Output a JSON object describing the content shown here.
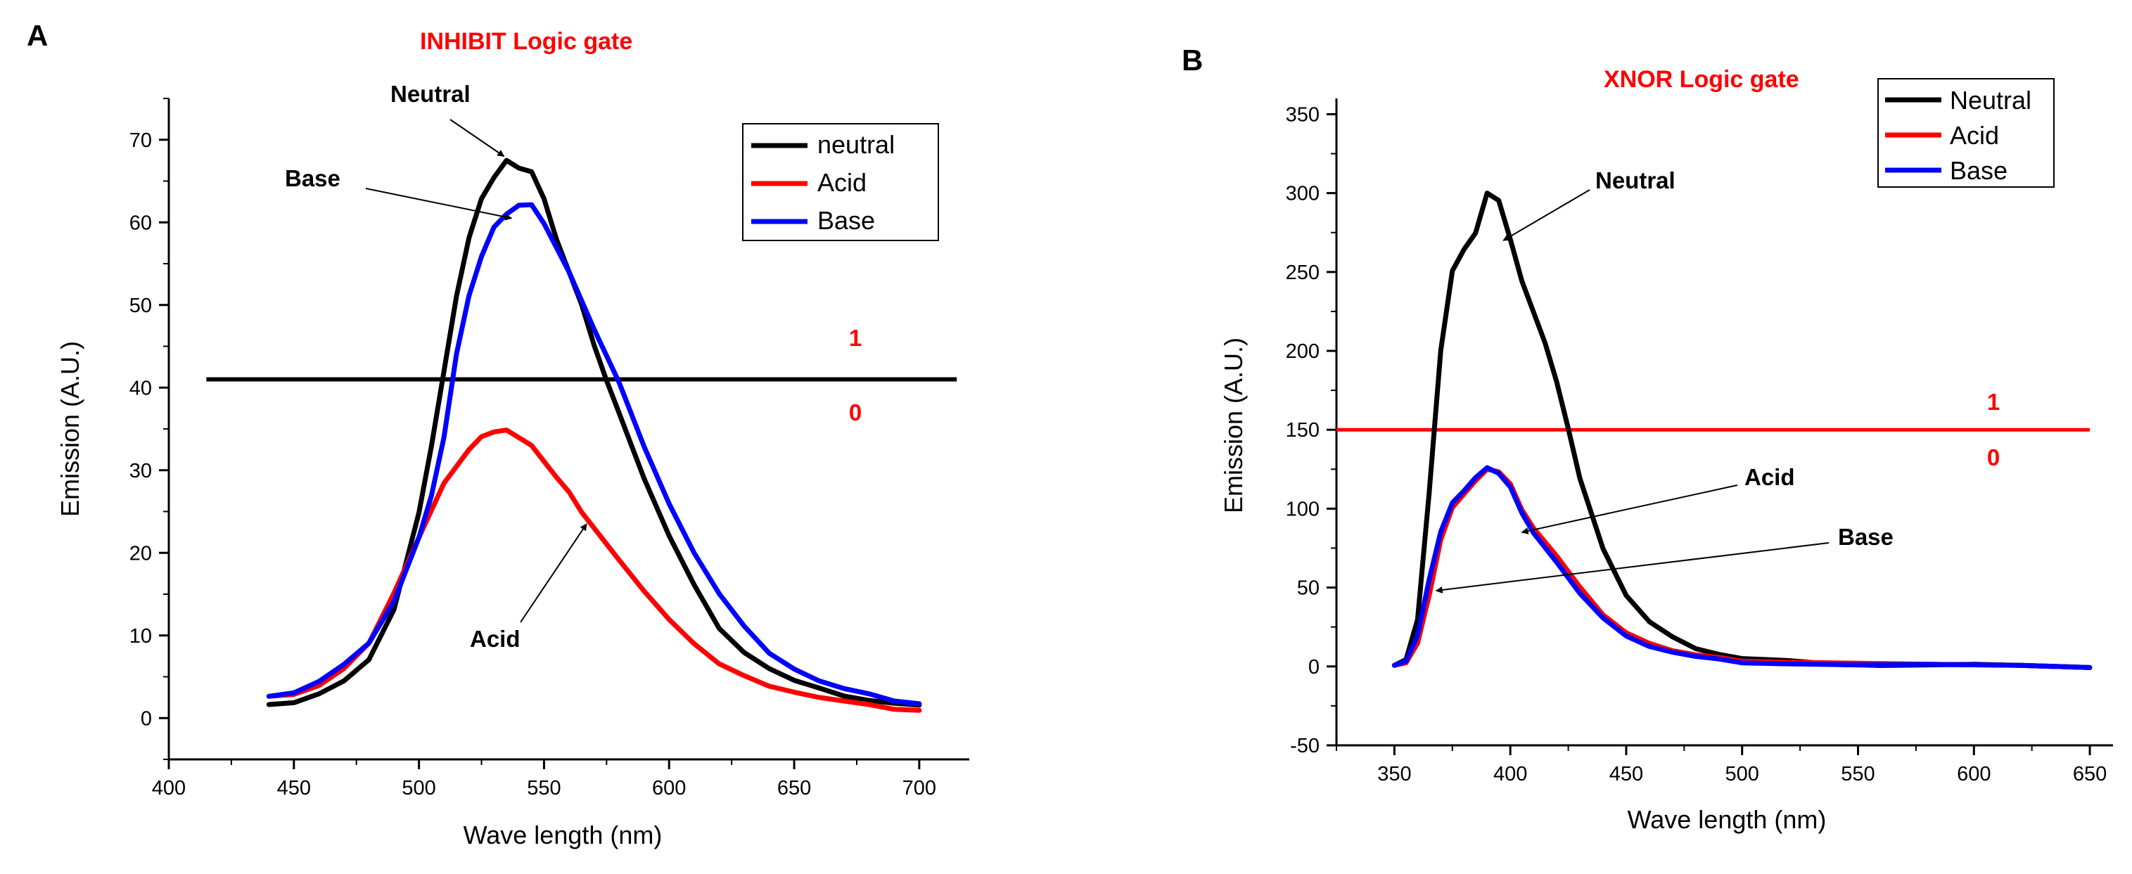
{
  "chart_data": [
    {
      "panel": "A",
      "type": "line",
      "title": "INHIBIT Logic gate",
      "xlabel": "Wave length (nm)",
      "ylabel": "Emission (A.U.)",
      "xlim": [
        400,
        720
      ],
      "ylim": [
        -5,
        75
      ],
      "xticks": [
        400,
        450,
        500,
        550,
        600,
        650,
        700
      ],
      "yticks": [
        0,
        10,
        20,
        30,
        40,
        50,
        60,
        70
      ],
      "legend": [
        "neutral",
        "Acid",
        "Base"
      ],
      "series": [
        {
          "name": "neutral",
          "color": "#000000",
          "x": [
            440,
            450,
            460,
            470,
            480,
            490,
            500,
            505,
            510,
            515,
            520,
            525,
            530,
            535,
            540,
            545,
            550,
            555,
            560,
            565,
            570,
            575,
            580,
            590,
            600,
            610,
            620,
            630,
            640,
            650,
            660,
            670,
            680,
            690,
            700
          ],
          "y": [
            1.5,
            2.0,
            3.0,
            4.5,
            7.0,
            13.0,
            25.0,
            33.0,
            42.0,
            51.0,
            58.0,
            63.0,
            65.5,
            67.5,
            66.5,
            66.0,
            63.0,
            58.0,
            54.0,
            50.0,
            45.0,
            41.0,
            37.0,
            29.0,
            22.0,
            16.0,
            11.0,
            8.0,
            6.0,
            4.5,
            3.5,
            2.8,
            2.2,
            1.8,
            1.5
          ]
        },
        {
          "name": "Acid",
          "color": "#ff0000",
          "x": [
            440,
            450,
            460,
            470,
            480,
            490,
            500,
            510,
            520,
            525,
            530,
            535,
            540,
            545,
            550,
            555,
            560,
            565,
            570,
            575,
            580,
            590,
            600,
            610,
            620,
            630,
            640,
            650,
            660,
            670,
            680,
            690,
            700
          ],
          "y": [
            2.5,
            3.0,
            4.0,
            6.0,
            9.0,
            15.0,
            22.0,
            28.5,
            32.5,
            34.0,
            34.5,
            35.0,
            34.0,
            33.0,
            31.0,
            29.0,
            27.5,
            25.0,
            23.0,
            21.0,
            19.0,
            15.5,
            12.0,
            9.0,
            6.5,
            5.0,
            4.0,
            3.2,
            2.5,
            2.0,
            1.5,
            1.2,
            1.0
          ]
        },
        {
          "name": "Base",
          "color": "#0000ff",
          "x": [
            440,
            450,
            460,
            470,
            480,
            490,
            500,
            505,
            510,
            515,
            520,
            525,
            530,
            535,
            540,
            545,
            550,
            555,
            560,
            570,
            580,
            590,
            600,
            610,
            620,
            630,
            640,
            650,
            660,
            670,
            680,
            690,
            700
          ],
          "y": [
            2.5,
            3.2,
            4.5,
            6.5,
            9.0,
            14.0,
            22.0,
            27.0,
            34.0,
            44.0,
            51.0,
            56.0,
            59.5,
            61.0,
            62.0,
            62.0,
            60.0,
            57.0,
            54.0,
            47.0,
            40.5,
            33.0,
            26.0,
            20.0,
            15.0,
            11.0,
            8.0,
            6.0,
            4.5,
            3.5,
            2.8,
            2.2,
            1.8
          ]
        }
      ],
      "threshold": {
        "y": 41,
        "x": [
          415,
          715
        ],
        "color": "#000000"
      },
      "level_labels": {
        "above": "1",
        "below": "0"
      },
      "annotations": [
        {
          "text": "Neutral",
          "point_x": 534,
          "point_y": 68
        },
        {
          "text": "Base",
          "point_x": 537,
          "point_y": 60.5
        },
        {
          "text": "Acid",
          "point_x": 567,
          "point_y": 23.5
        }
      ]
    },
    {
      "panel": "B",
      "type": "line",
      "title": "XNOR Logic gate",
      "xlabel": "Wave length (nm)",
      "ylabel": "Emission (A.U.)",
      "xlim": [
        325,
        660
      ],
      "ylim": [
        -50,
        360
      ],
      "xticks": [
        350,
        400,
        450,
        500,
        550,
        600,
        650
      ],
      "yticks": [
        -50,
        0,
        50,
        100,
        150,
        200,
        250,
        300,
        350
      ],
      "legend": [
        "Neutral",
        "Acid",
        "Base"
      ],
      "series": [
        {
          "name": "Neutral",
          "color": "#000000",
          "x": [
            350,
            355,
            360,
            365,
            370,
            375,
            380,
            385,
            390,
            395,
            400,
            405,
            410,
            415,
            420,
            425,
            430,
            440,
            450,
            460,
            470,
            480,
            490,
            500,
            510,
            520,
            540,
            560,
            580,
            600,
            620,
            650
          ],
          "y": [
            0,
            5,
            30,
            110,
            200,
            250,
            265,
            275,
            300,
            295,
            270,
            245,
            225,
            205,
            180,
            150,
            120,
            75,
            45,
            28,
            18,
            12,
            8,
            5,
            4,
            3,
            2,
            1,
            1,
            1,
            0,
            0
          ]
        },
        {
          "name": "Acid",
          "color": "#ff0000",
          "x": [
            350,
            355,
            360,
            365,
            370,
            375,
            380,
            385,
            390,
            395,
            400,
            405,
            410,
            420,
            430,
            440,
            450,
            460,
            470,
            480,
            490,
            500,
            520,
            550,
            580,
            620,
            650
          ],
          "y": [
            0,
            3,
            15,
            45,
            80,
            100,
            110,
            118,
            125,
            123,
            115,
            100,
            88,
            70,
            50,
            32,
            22,
            15,
            10,
            7,
            5,
            4,
            3,
            2,
            1,
            0,
            0
          ]
        },
        {
          "name": "Base",
          "color": "#0000ff",
          "x": [
            350,
            355,
            360,
            365,
            370,
            375,
            380,
            385,
            390,
            395,
            400,
            405,
            410,
            420,
            430,
            440,
            450,
            460,
            470,
            480,
            490,
            500,
            520,
            550,
            580,
            620,
            650
          ],
          "y": [
            0,
            4,
            20,
            55,
            85,
            103,
            112,
            120,
            126,
            122,
            113,
            98,
            85,
            66,
            46,
            30,
            20,
            13,
            9,
            6,
            4,
            3,
            2,
            1,
            1,
            0,
            0
          ]
        }
      ],
      "threshold": {
        "y": 150,
        "x": [
          325,
          650
        ],
        "color": "#ff0000"
      },
      "level_labels": {
        "above": "1",
        "below": "0"
      },
      "annotations": [
        {
          "text": "Neutral",
          "point_x": 397,
          "point_y": 270
        },
        {
          "text": "Acid",
          "point_x": 405,
          "point_y": 85
        },
        {
          "text": "Base",
          "point_x": 368,
          "point_y": 48
        }
      ]
    }
  ]
}
